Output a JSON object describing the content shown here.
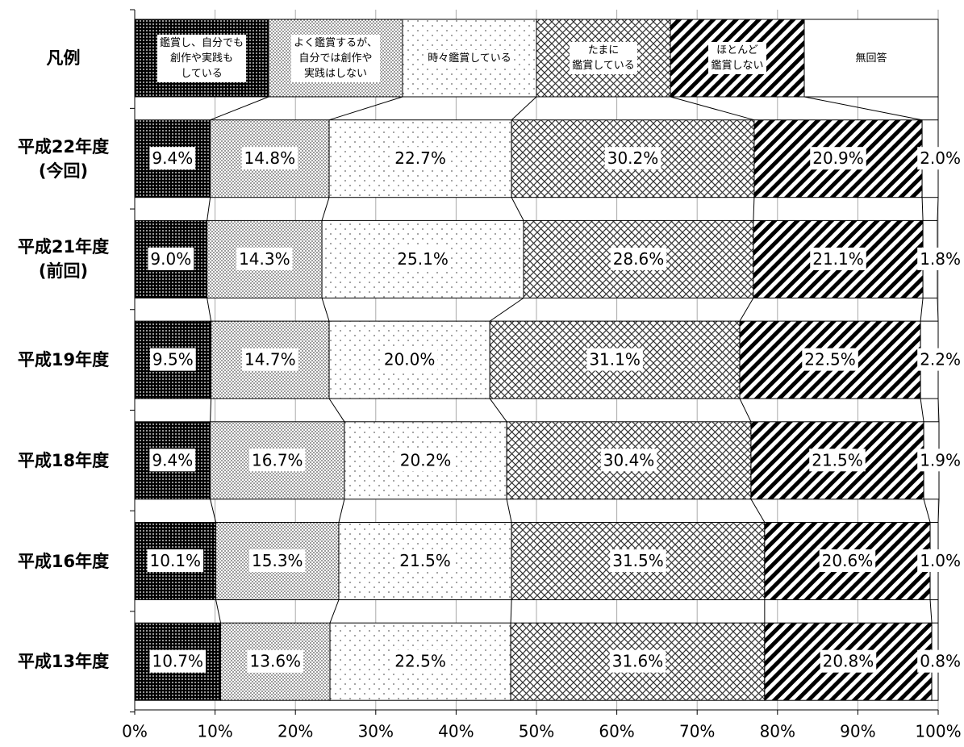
{
  "chart_data": {
    "type": "stacked-bar-horizontal",
    "legend_title": "凡例",
    "categories": [
      "平成22年度\n(今回)",
      "平成21年度\n(前回)",
      "平成19年度",
      "平成18年度",
      "平成16年度",
      "平成13年度"
    ],
    "series": [
      {
        "name": "鑑賞し、自分でも\n創作や実践も\nしている",
        "color": "#000000",
        "pattern": "dense-dots",
        "values": [
          9.4,
          9.0,
          9.5,
          9.4,
          10.1,
          10.7
        ],
        "value_labels": [
          "9.4%",
          "9.0%",
          "9.5%",
          "9.4%",
          "10.1%",
          "10.7%"
        ]
      },
      {
        "name": "よく鑑賞するが、\n自分では創作や\n実践はしない",
        "color": "#555555",
        "pattern": "stipple",
        "values": [
          14.8,
          14.3,
          14.7,
          16.7,
          15.3,
          13.6
        ],
        "value_labels": [
          "14.8%",
          "14.3%",
          "14.7%",
          "16.7%",
          "15.3%",
          "13.6%"
        ]
      },
      {
        "name": "時々鑑賞している",
        "color": "#666666",
        "pattern": "sparse-dots",
        "values": [
          22.7,
          25.1,
          20.0,
          20.2,
          21.5,
          22.5
        ],
        "value_labels": [
          "22.7%",
          "25.1%",
          "20.0%",
          "20.2%",
          "21.5%",
          "22.5%"
        ]
      },
      {
        "name": "たまに\n鑑賞している",
        "color": "#333333",
        "pattern": "crosshatch",
        "values": [
          30.2,
          28.6,
          31.1,
          30.4,
          31.5,
          31.6
        ],
        "value_labels": [
          "30.2%",
          "28.6%",
          "31.1%",
          "30.4%",
          "31.5%",
          "31.6%"
        ]
      },
      {
        "name": "ほとんど\n鑑賞しない",
        "color": "#000000",
        "pattern": "stripes",
        "values": [
          20.9,
          21.1,
          22.5,
          21.5,
          20.6,
          20.8
        ],
        "value_labels": [
          "20.9%",
          "21.1%",
          "22.5%",
          "21.5%",
          "20.6%",
          "20.8%"
        ]
      },
      {
        "name": "無回答",
        "color": "#ffffff",
        "pattern": "none",
        "values": [
          2.0,
          1.8,
          2.2,
          1.9,
          1.0,
          0.8
        ],
        "value_labels": [
          "2.0%",
          "1.8%",
          "2.2%",
          "1.9%",
          "1.0%",
          "0.8%"
        ]
      }
    ],
    "xlim": [
      0,
      100
    ],
    "xticks": [
      {
        "value": 0,
        "label": "0%"
      },
      {
        "value": 10,
        "label": "10%"
      },
      {
        "value": 20,
        "label": "20%"
      },
      {
        "value": 30,
        "label": "30%"
      },
      {
        "value": 40,
        "label": "40%"
      },
      {
        "value": 50,
        "label": "50%"
      },
      {
        "value": 60,
        "label": "60%"
      },
      {
        "value": 70,
        "label": "70%"
      },
      {
        "value": 80,
        "label": "80%"
      },
      {
        "value": 90,
        "label": "90%"
      },
      {
        "value": 100,
        "label": "100%"
      }
    ],
    "grid": true
  }
}
